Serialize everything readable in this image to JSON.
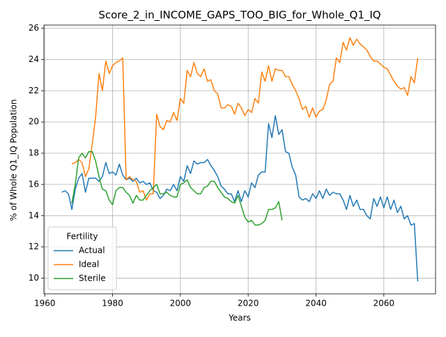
{
  "chart_data": {
    "type": "line",
    "title": "Score_2_in_INCOME_GAPS_TOO_BIG_for_Whole_Q1_IQ",
    "xlabel": "Years",
    "ylabel": "% of Whole Q1_IQ Population",
    "legend_title": "Fertility",
    "legend": "lower left",
    "grid": true,
    "xlim": [
      1959.75,
      2075.25
    ],
    "xticks": [
      1960,
      1980,
      2000,
      2020,
      2040,
      2060
    ],
    "ylim": [
      9.0,
      26.2
    ],
    "yticks": [
      10,
      12,
      14,
      16,
      18,
      20,
      22,
      24,
      26
    ],
    "x": [
      1965,
      1966,
      1967,
      1968,
      1969,
      1970,
      1971,
      1972,
      1973,
      1974,
      1975,
      1976,
      1977,
      1978,
      1979,
      1980,
      1981,
      1982,
      1983,
      1984,
      1985,
      1986,
      1987,
      1988,
      1989,
      1990,
      1991,
      1992,
      1993,
      1994,
      1995,
      1996,
      1997,
      1998,
      1999,
      2000,
      2001,
      2002,
      2003,
      2004,
      2005,
      2006,
      2007,
      2008,
      2009,
      2010,
      2011,
      2012,
      2013,
      2014,
      2015,
      2016,
      2017,
      2018,
      2019,
      2020,
      2021,
      2022,
      2023,
      2024,
      2025,
      2026,
      2027,
      2028,
      2029,
      2030,
      2031,
      2032,
      2033,
      2034,
      2035,
      2036,
      2037,
      2038,
      2039,
      2040,
      2041,
      2042,
      2043,
      2044,
      2045,
      2046,
      2047,
      2048,
      2049,
      2050,
      2051,
      2052,
      2053,
      2054,
      2055,
      2056,
      2057,
      2058,
      2059,
      2060,
      2061,
      2062,
      2063,
      2064,
      2065,
      2066,
      2067,
      2068,
      2069,
      2070
    ],
    "series": [
      {
        "name": "Actual",
        "color": "#1f77b4",
        "values": [
          15.5,
          15.6,
          15.4,
          14.4,
          15.7,
          16.4,
          16.7,
          15.5,
          16.4,
          16.4,
          16.4,
          16.2,
          16.5,
          17.4,
          16.7,
          16.8,
          16.6,
          17.3,
          16.6,
          16.3,
          16.4,
          16.2,
          16.4,
          16.1,
          16.2,
          16.0,
          16.1,
          15.6,
          15.5,
          15.1,
          15.3,
          15.7,
          15.6,
          16.0,
          15.6,
          16.5,
          16.2,
          17.2,
          16.7,
          17.5,
          17.3,
          17.4,
          17.4,
          17.6,
          17.2,
          16.9,
          16.5,
          15.9,
          15.7,
          15.4,
          15.4,
          14.9,
          15.6,
          14.9,
          15.6,
          15.2,
          16.1,
          15.8,
          16.6,
          16.8,
          16.8,
          19.9,
          19.0,
          20.4,
          19.2,
          19.5,
          18.1,
          18.0,
          17.1,
          16.6,
          15.2,
          15.0,
          15.1,
          14.9,
          15.4,
          15.1,
          15.6,
          15.1,
          15.7,
          15.3,
          15.5,
          15.4,
          15.4,
          15.0,
          14.4,
          15.3,
          14.6,
          15.0,
          14.4,
          14.4,
          14.0,
          13.8,
          15.1,
          14.6,
          15.2,
          14.5,
          15.2,
          14.4,
          15.0,
          14.2,
          14.6,
          13.8,
          14.0,
          13.4,
          13.5,
          9.8
        ]
      },
      {
        "name": "Ideal",
        "color": "#ff7f0e",
        "values": [
          null,
          null,
          null,
          17.3,
          17.4,
          17.6,
          17.4,
          16.5,
          17.0,
          18.6,
          20.3,
          23.1,
          22.0,
          23.9,
          23.1,
          23.6,
          23.8,
          23.9,
          24.1,
          16.3,
          16.5,
          16.3,
          16.2,
          15.5,
          15.6,
          15.0,
          15.4,
          15.4,
          20.5,
          19.7,
          19.5,
          20.1,
          20.0,
          20.6,
          20.1,
          21.5,
          21.2,
          23.3,
          22.9,
          23.8,
          23.1,
          22.9,
          23.4,
          22.6,
          22.7,
          22.0,
          21.8,
          20.9,
          20.9,
          21.1,
          21.0,
          20.5,
          21.2,
          20.9,
          20.4,
          20.8,
          20.6,
          21.5,
          21.2,
          23.2,
          22.6,
          23.6,
          22.6,
          23.4,
          23.3,
          23.3,
          22.9,
          22.9,
          22.4,
          22.0,
          21.5,
          20.8,
          21.0,
          20.3,
          20.9,
          20.3,
          20.7,
          20.8,
          21.4,
          22.4,
          22.6,
          24.1,
          23.8,
          25.1,
          24.6,
          25.4,
          24.9,
          25.3,
          25.0,
          24.8,
          24.6,
          24.2,
          23.9,
          23.9,
          23.7,
          23.5,
          23.4,
          23.0,
          22.6,
          22.3,
          22.1,
          22.2,
          21.7,
          22.9,
          22.5,
          24.1
        ]
      },
      {
        "name": "Sterile",
        "color": "#2ca02c",
        "values": [
          null,
          null,
          null,
          14.8,
          16.0,
          17.7,
          18.0,
          17.7,
          18.1,
          18.1,
          17.5,
          16.5,
          15.7,
          15.6,
          15.0,
          14.7,
          15.6,
          15.8,
          15.8,
          15.5,
          15.3,
          14.8,
          15.3,
          15.0,
          15.0,
          15.3,
          15.6,
          15.8,
          16.0,
          15.4,
          15.4,
          15.5,
          15.3,
          15.2,
          15.2,
          16.0,
          16.1,
          16.3,
          15.8,
          15.6,
          15.4,
          15.4,
          15.8,
          15.9,
          16.2,
          16.2,
          15.8,
          15.5,
          15.2,
          15.1,
          14.9,
          14.8,
          15.3,
          14.6,
          13.9,
          13.6,
          13.7,
          13.4,
          13.4,
          13.5,
          13.7,
          14.4,
          14.4,
          14.5,
          14.9,
          13.7,
          null,
          null,
          null,
          null,
          null,
          null,
          null,
          null,
          null,
          null,
          null,
          null,
          null,
          null,
          null,
          null,
          null,
          null,
          null,
          null,
          null,
          null,
          null,
          null,
          null,
          null,
          null,
          null,
          null,
          null,
          null,
          null,
          null,
          null,
          null,
          null,
          null,
          null,
          null,
          null
        ]
      }
    ]
  }
}
